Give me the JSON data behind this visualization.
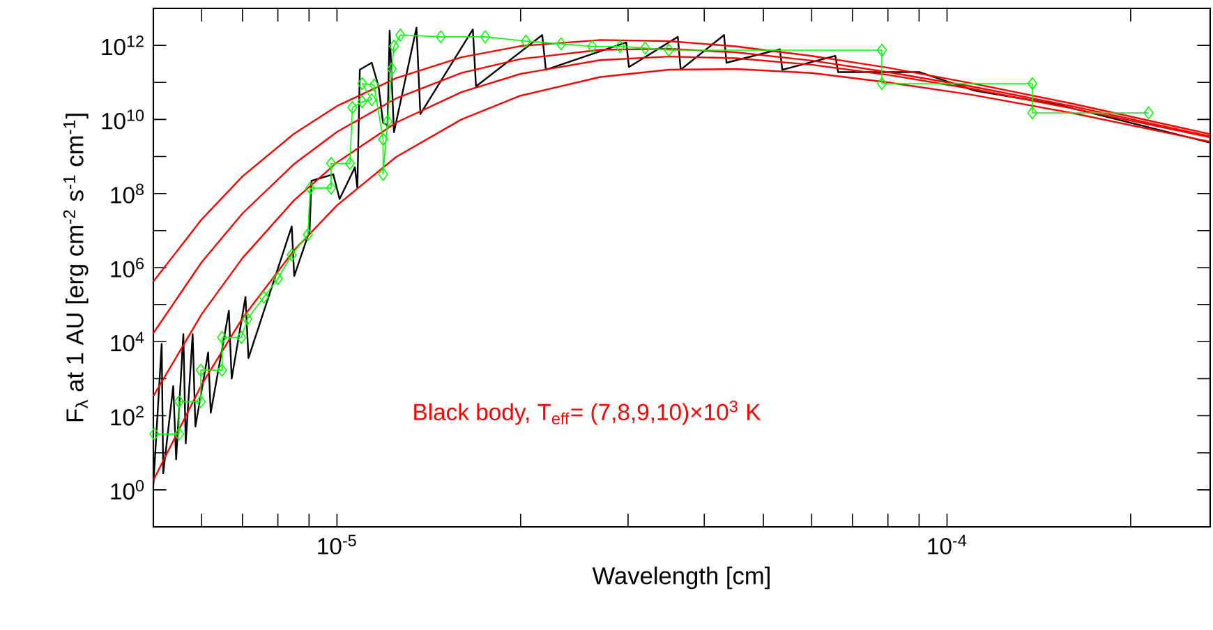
{
  "chart_data": {
    "type": "line",
    "xlabel": "Wavelength [cm]",
    "ylabel": "F$_{λ}$ at 1 AU [erg cm$^{-2}$ s$^{-1}$ cm$^{-1}$]",
    "log": "xy",
    "xlim": [
      5e-06,
      0.00027
    ],
    "ylim": [
      0.1,
      10000000000000.0
    ],
    "xticks": [
      {
        "value": 6e-06,
        "label": null
      },
      {
        "value": 7e-06,
        "label": null
      },
      {
        "value": 8e-06,
        "label": null
      },
      {
        "value": 9e-06,
        "label": null
      },
      {
        "value": 1e-05,
        "label": "10$^{-5}$"
      },
      {
        "value": 2e-05,
        "label": null
      },
      {
        "value": 3e-05,
        "label": null
      },
      {
        "value": 4e-05,
        "label": null
      },
      {
        "value": 5e-05,
        "label": null
      },
      {
        "value": 6e-05,
        "label": null
      },
      {
        "value": 7e-05,
        "label": null
      },
      {
        "value": 8e-05,
        "label": null
      },
      {
        "value": 9e-05,
        "label": null
      },
      {
        "value": 0.0001,
        "label": "10$^{-4}$"
      },
      {
        "value": 0.0002,
        "label": null
      }
    ],
    "yticks": [
      {
        "value": 1,
        "label": "10$^{0}$"
      },
      {
        "value": 10,
        "label": null
      },
      {
        "value": 100,
        "label": "10$^{2}$"
      },
      {
        "value": 1000.0,
        "label": null
      },
      {
        "value": 10000.0,
        "label": "10$^{4}$"
      },
      {
        "value": 100000.0,
        "label": null
      },
      {
        "value": 1000000.0,
        "label": "10$^{6}$"
      },
      {
        "value": 10000000.0,
        "label": null
      },
      {
        "value": 100000000.0,
        "label": "10$^{8}$"
      },
      {
        "value": 1000000000.0,
        "label": null
      },
      {
        "value": 10000000000.0,
        "label": "10$^{10}$"
      },
      {
        "value": 100000000000.0,
        "label": null
      },
      {
        "value": 1000000000000.0,
        "label": "10$^{12}$"
      }
    ],
    "annotations": [
      "Black body, T$_{eff}$= (7,8,9,10)×10$^{3}$ K"
    ],
    "series": [
      {
        "color": "#000000",
        "x": [
          5e-06,
          5.16e-06,
          5.19e-06,
          5.39e-06,
          5.45e-06,
          5.6e-06,
          5.65e-06,
          5.8e-06,
          5.86e-06,
          6.15e-06,
          6.21e-06,
          6.65e-06,
          6.72e-06,
          7.08e-06,
          7.16e-06,
          8.43e-06,
          8.51e-06,
          9.02e-06,
          9.08e-06,
          9.86e-06,
          1.01e-05,
          1.07e-05,
          1.08e-05,
          1.09e-05,
          1.14e-05,
          1.17e-05,
          1.19e-05,
          1.21e-05,
          1.22e-05,
          1.24e-05,
          1.35e-05,
          1.37e-05,
          1.67e-05,
          1.69e-05,
          2.17e-05,
          2.2e-05,
          2.98e-05,
          3.01e-05,
          3.62e-05,
          3.66e-05,
          4.31e-05,
          4.35e-05,
          5.32e-05,
          5.37e-05,
          6.56e-05,
          6.63e-05,
          9e-05,
          0.000111,
          0.000152,
          0.000269
        ],
        "values": [
          1.3,
          8700.0,
          2.8,
          630.0,
          6.6,
          16000.0,
          18,
          16000.0,
          51,
          5100.0,
          120.0,
          68000.0,
          1000.0,
          160000.0,
          3600.0,
          13000000.0,
          590000.0,
          10000000.0,
          220000000.0,
          330000000.0,
          71000000.0,
          510000000.0,
          140000000.0,
          220000000000.0,
          340000000000.0,
          78000000000.0,
          8100000000.0,
          6900000000.0,
          2500000000000.0,
          4500000000.0,
          3000000000000.0,
          14000000000.0,
          2700000000000.0,
          78000000000.0,
          1900000000000.0,
          220000000000.0,
          1200000000000.0,
          260000000000.0,
          1700000000000.0,
          220000000000.0,
          1900000000000.0,
          340000000000.0,
          790000000000.0,
          220000000000.0,
          520000000000.0,
          190000000000.0,
          190000000000.0,
          60000000000.0,
          25000000000.0,
          2400000000.0
        ]
      },
      {
        "color": "#ff0000",
        "x": [
          5e-06,
          6e-06,
          7e-06,
          8.5e-06,
          1e-05,
          1.25e-05,
          1.6e-05,
          2e-05,
          2.7e-05,
          3.5e-05,
          4.5e-05,
          6e-05,
          8e-05,
          0.00011,
          0.00016,
          0.00027
        ],
        "values": [
          1.8,
          690.0,
          43000.0,
          2900000.0,
          48000000.0,
          970000000.0,
          10000000000.0,
          44000000000.0,
          140000000000.0,
          220000000000.0,
          230000000000.0,
          180000000000.0,
          100000000000.0,
          46000000000.0,
          15000000000.0,
          2500000000.0
        ]
      },
      {
        "color": "#ff0000",
        "x": [
          5e-06,
          6e-06,
          7e-06,
          8.5e-06,
          1e-05,
          1.25e-05,
          1.6e-05,
          2e-05,
          2.7e-05,
          3.5e-05,
          4.5e-05,
          6e-05,
          8e-05,
          0.00011,
          0.00016,
          0.00027
        ],
        "values": [
          340.0,
          55000.0,
          1800000.0,
          65000000.0,
          690000000.0,
          8200000000.0,
          55000000000.0,
          170000000000.0,
          400000000000.0,
          500000000000.0,
          450000000000.0,
          300000000000.0,
          160000000000.0,
          67000000000.0,
          20000000000.0,
          3300000000.0
        ]
      },
      {
        "color": "#ff0000",
        "x": [
          5e-06,
          6e-06,
          7e-06,
          8.5e-06,
          1e-05,
          1.25e-05,
          1.6e-05,
          2e-05,
          2.7e-05,
          3.5e-05,
          4.5e-05,
          6e-05,
          8e-05,
          0.00011,
          0.00016,
          0.00027
        ],
        "values": [
          17000.0,
          1400000.0,
          29000000.0,
          620000000.0,
          4600000000.0,
          37000000000.0,
          180000000000.0,
          430000000000.0,
          760000000000.0,
          810000000000.0,
          650000000000.0,
          390000000000.0,
          190000000000.0,
          77000000000.0,
          23000000000.0,
          3500000000.0
        ]
      },
      {
        "color": "#ff0000",
        "x": [
          5e-06,
          6e-06,
          7e-06,
          8.5e-06,
          1e-05,
          1.25e-05,
          1.6e-05,
          2e-05,
          2.7e-05,
          3.5e-05,
          4.5e-05,
          6e-05,
          8e-05,
          0.00011,
          0.00016,
          0.00027
        ],
        "values": [
          420000.0,
          20000000.0,
          290000000.0,
          4100000000.0,
          23000000000.0,
          130000000000.0,
          480000000000.0,
          960000000000.0,
          1400000000000.0,
          1300000000000.0,
          940000000000.0,
          520000000000.0,
          250000000000.0,
          94000000000.0,
          27000000000.0,
          4000000000.0
        ]
      },
      {
        "color": "#00ff00",
        "marker": "diamond",
        "x": [
          5.02e-06,
          5.51e-06,
          5.51e-06,
          5.98e-06,
          5.98e-06,
          6.48e-06,
          6.48e-06,
          6.97e-06,
          7.13e-06,
          7.59e-06,
          8e-06,
          8.43e-06,
          8.96e-06,
          9.04e-06,
          9.78e-06,
          9.78e-06,
          1.05e-05,
          1.06e-05,
          1.1e-05,
          1.14e-05,
          1.1e-05,
          1.15e-05,
          1.19e-05,
          1.19e-05,
          1.21e-05,
          1.23e-05,
          1.24e-05,
          1.27e-05,
          1.48e-05,
          1.75e-05,
          2.04e-05,
          2.33e-05,
          2.62e-05,
          2.91e-05,
          3.2e-05,
          3.5e-05,
          7.82e-05,
          7.82e-05,
          0.000138,
          0.000138,
          0.000214
        ],
        "values": [
          32,
          32,
          240.0,
          240.0,
          1700.0,
          1700.0,
          13000.0,
          13000.0,
          41000.0,
          160000.0,
          500000.0,
          2200000.0,
          7800000.0,
          140000000.0,
          140000000.0,
          650000000.0,
          650000000.0,
          21000000000.0,
          30000000000.0,
          34000000000.0,
          93000000000.0,
          85000000000.0,
          2900000000.0,
          330000000.0,
          8700000000.0,
          230000000000.0,
          950000000000.0,
          1900000000000.0,
          1700000000000.0,
          1700000000000.0,
          1300000000000.0,
          1100000000000.0,
          930000000000.0,
          930000000000.0,
          850000000000.0,
          740000000000.0,
          740000000000.0,
          93000000000.0,
          93000000000.0,
          15000000000.0,
          15000000000.0
        ]
      }
    ]
  }
}
